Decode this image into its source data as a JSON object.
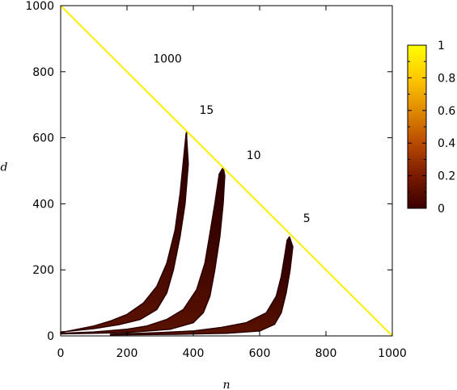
{
  "chart_data": {
    "type": "heatmap",
    "title": "",
    "xlabel": "n",
    "ylabel": "d",
    "xlim": [
      0,
      1000
    ],
    "ylim": [
      0,
      1000
    ],
    "xticks": [
      "0",
      "200",
      "400",
      "600",
      "800",
      "1000"
    ],
    "yticks": [
      "0",
      "200",
      "400",
      "600",
      "800",
      "1000"
    ],
    "colorbar": {
      "range": [
        0,
        1
      ],
      "ticks": [
        "0",
        "0.2",
        "0.4",
        "0.6",
        "0.8",
        "1"
      ],
      "colors": [
        "#3a0000",
        "#7a1a00",
        "#b84a00",
        "#e08a00",
        "#ffc800",
        "#ffff00"
      ]
    },
    "diagonal": {
      "from": [
        0,
        1000
      ],
      "to": [
        1000,
        0
      ],
      "value": 1,
      "color": "#ffee00"
    },
    "regions": [
      {
        "label": "15",
        "label_pos": [
          440,
          672
        ],
        "tip": [
          380,
          620
        ],
        "left_edge": [
          [
            0,
            10
          ],
          [
            50,
            20
          ],
          [
            100,
            30
          ],
          [
            150,
            45
          ],
          [
            200,
            65
          ],
          [
            250,
            100
          ],
          [
            290,
            150
          ],
          [
            320,
            220
          ],
          [
            345,
            320
          ],
          [
            360,
            430
          ],
          [
            370,
            530
          ],
          [
            378,
            610
          ]
        ],
        "right_edge": [
          [
            380,
            600
          ],
          [
            385,
            520
          ],
          [
            375,
            400
          ],
          [
            360,
            300
          ],
          [
            340,
            200
          ],
          [
            320,
            130
          ],
          [
            290,
            80
          ],
          [
            240,
            50
          ],
          [
            180,
            35
          ],
          [
            100,
            22
          ],
          [
            0,
            12
          ]
        ]
      },
      {
        "label": "10",
        "label_pos": [
          582,
          536
        ],
        "tip": [
          490,
          510
        ],
        "left_edge": [
          [
            0,
            8
          ],
          [
            100,
            12
          ],
          [
            200,
            20
          ],
          [
            260,
            30
          ],
          [
            320,
            50
          ],
          [
            370,
            80
          ],
          [
            410,
            140
          ],
          [
            435,
            220
          ],
          [
            450,
            310
          ],
          [
            465,
            400
          ],
          [
            478,
            490
          ]
        ],
        "right_edge": [
          [
            495,
            485
          ],
          [
            490,
            400
          ],
          [
            480,
            300
          ],
          [
            465,
            200
          ],
          [
            450,
            120
          ],
          [
            430,
            70
          ],
          [
            400,
            40
          ],
          [
            330,
            20
          ],
          [
            200,
            10
          ],
          [
            0,
            6
          ]
        ]
      },
      {
        "label": "5",
        "label_pos": [
          742,
          345
        ],
        "tip": [
          690,
          300
        ],
        "left_edge": [
          [
            150,
            5
          ],
          [
            300,
            10
          ],
          [
            400,
            15
          ],
          [
            480,
            25
          ],
          [
            560,
            40
          ],
          [
            620,
            70
          ],
          [
            650,
            120
          ],
          [
            665,
            180
          ],
          [
            675,
            240
          ],
          [
            683,
            290
          ]
        ],
        "right_edge": [
          [
            700,
            270
          ],
          [
            692,
            200
          ],
          [
            680,
            130
          ],
          [
            665,
            70
          ],
          [
            645,
            35
          ],
          [
            600,
            15
          ],
          [
            500,
            8
          ],
          [
            350,
            5
          ],
          [
            150,
            3
          ]
        ]
      }
    ],
    "annotations": [
      {
        "text": "1000",
        "pos": [
          322,
          828
        ]
      }
    ]
  }
}
